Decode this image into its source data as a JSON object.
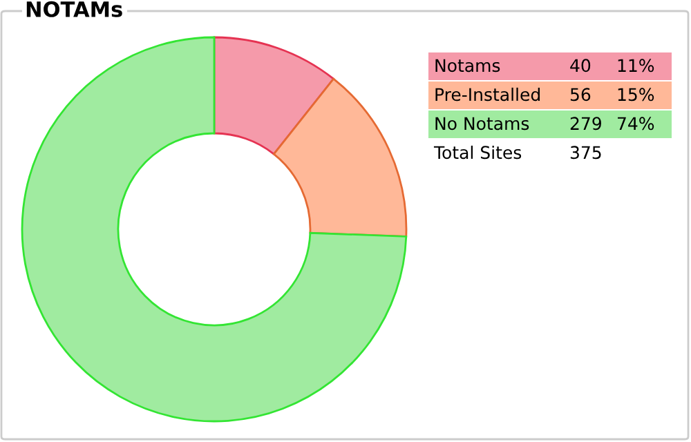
{
  "chart_data": {
    "type": "donut",
    "title": "NOTAMs",
    "categories": [
      "Notams",
      "Pre-Installed",
      "No Notams"
    ],
    "values": [
      40,
      56,
      279
    ],
    "colors": [
      "#f59aaa",
      "#ffb898",
      "#a0eba0"
    ],
    "data_labels": true,
    "annotations": [
      "11%",
      "15%",
      "74%",
      "Total Sites",
      "375"
    ],
    "legend": "top right"
  }
}
